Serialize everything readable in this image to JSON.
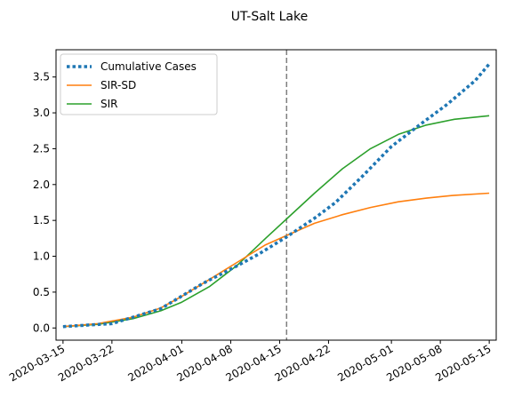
{
  "chart_data": {
    "type": "line",
    "title": "UT-Salt Lake",
    "xlabel": "",
    "ylabel": "",
    "x_type": "date",
    "xlim": [
      "2020-03-14",
      "2020-05-16"
    ],
    "ylim": [
      -0.17,
      3.88
    ],
    "x_ticks": [
      "2020-03-15",
      "2020-03-22",
      "2020-04-01",
      "2020-04-08",
      "2020-04-15",
      "2020-04-22",
      "2020-05-01",
      "2020-05-08",
      "2020-05-15"
    ],
    "y_ticks": [
      "0.0",
      "0.5",
      "1.0",
      "1.5",
      "2.0",
      "2.5",
      "3.0",
      "3.5"
    ],
    "y_tick_values": [
      0,
      0.5,
      1.0,
      1.5,
      2.0,
      2.5,
      3.0,
      3.5
    ],
    "grid": false,
    "legend_position": "top-left",
    "vline": {
      "x": "2020-04-16",
      "color": "#7f7f7f",
      "style": "dashed"
    },
    "series": [
      {
        "name": "Cumulative Cases",
        "color": "#1f77b4",
        "style": "dotted",
        "x": [
          "2020-03-15",
          "2020-03-22",
          "2020-03-29",
          "2020-04-04",
          "2020-04-09",
          "2020-04-12",
          "2020-04-16",
          "2020-04-20",
          "2020-04-23",
          "2020-04-27",
          "2020-05-01",
          "2020-05-05",
          "2020-05-09",
          "2020-05-13",
          "2020-05-15"
        ],
        "y": [
          0.02,
          0.06,
          0.27,
          0.62,
          0.87,
          1.03,
          1.27,
          1.53,
          1.75,
          2.13,
          2.53,
          2.83,
          3.12,
          3.45,
          3.68
        ]
      },
      {
        "name": "SIR-SD",
        "color": "#ff7f0e",
        "style": "solid",
        "x": [
          "2020-03-15",
          "2020-03-20",
          "2020-03-25",
          "2020-03-29",
          "2020-04-01",
          "2020-04-05",
          "2020-04-09",
          "2020-04-13",
          "2020-04-16",
          "2020-04-20",
          "2020-04-24",
          "2020-04-28",
          "2020-05-02",
          "2020-05-06",
          "2020-05-10",
          "2020-05-15"
        ],
        "y": [
          0.02,
          0.06,
          0.15,
          0.28,
          0.44,
          0.68,
          0.92,
          1.16,
          1.29,
          1.46,
          1.58,
          1.68,
          1.76,
          1.81,
          1.85,
          1.88
        ]
      },
      {
        "name": "SIR",
        "color": "#2ca02c",
        "style": "solid",
        "x": [
          "2020-03-15",
          "2020-03-20",
          "2020-03-25",
          "2020-03-29",
          "2020-04-01",
          "2020-04-05",
          "2020-04-09",
          "2020-04-13",
          "2020-04-16",
          "2020-04-20",
          "2020-04-24",
          "2020-04-28",
          "2020-05-02",
          "2020-05-06",
          "2020-05-10",
          "2020-05-15"
        ],
        "y": [
          0.02,
          0.05,
          0.13,
          0.24,
          0.36,
          0.58,
          0.88,
          1.25,
          1.52,
          1.88,
          2.22,
          2.5,
          2.7,
          2.83,
          2.91,
          2.96
        ]
      }
    ]
  }
}
